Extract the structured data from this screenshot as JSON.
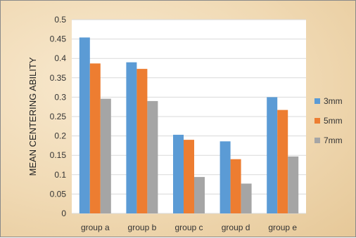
{
  "chart_data": {
    "type": "bar",
    "title": "",
    "xlabel": "",
    "ylabel": "MEAN CENTERING ABILITY",
    "ylim": [
      0,
      0.5
    ],
    "yticks": [
      "0",
      "0.05",
      "0.1",
      "0.15",
      "0.2",
      "0.25",
      "0.3",
      "0.35",
      "0.4",
      "0.45",
      "0.5"
    ],
    "grid": true,
    "legend_position": "right",
    "categories": [
      "group a",
      "group b",
      "group c",
      "group d",
      "group e"
    ],
    "series": [
      {
        "name": "3mm",
        "color": "#5b9bd5",
        "values": [
          0.454,
          0.39,
          0.203,
          0.186,
          0.3
        ]
      },
      {
        "name": "5mm",
        "color": "#ed7d31",
        "values": [
          0.387,
          0.373,
          0.19,
          0.14,
          0.267
        ]
      },
      {
        "name": "7mm",
        "color": "#a5a5a5",
        "values": [
          0.296,
          0.29,
          0.094,
          0.077,
          0.147
        ]
      }
    ]
  }
}
